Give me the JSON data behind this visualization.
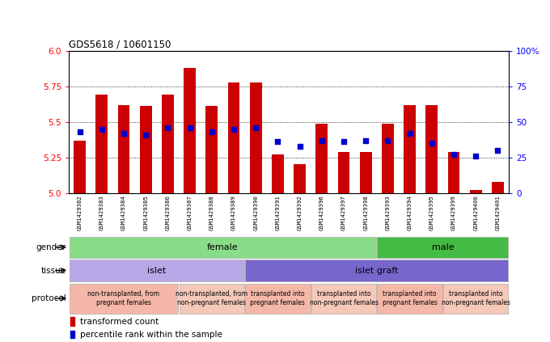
{
  "title": "GDS5618 / 10601150",
  "samples": [
    "GSM1429382",
    "GSM1429383",
    "GSM1429384",
    "GSM1429385",
    "GSM1429386",
    "GSM1429387",
    "GSM1429388",
    "GSM1429389",
    "GSM1429390",
    "GSM1429391",
    "GSM1429392",
    "GSM1429396",
    "GSM1429397",
    "GSM1429398",
    "GSM1429393",
    "GSM1429394",
    "GSM1429395",
    "GSM1429399",
    "GSM1429400",
    "GSM1429401"
  ],
  "bar_heights": [
    5.37,
    5.69,
    5.62,
    5.61,
    5.69,
    5.88,
    5.61,
    5.78,
    5.78,
    5.27,
    5.2,
    5.49,
    5.29,
    5.29,
    5.49,
    5.62,
    5.62,
    5.29,
    5.02,
    5.08
  ],
  "percentile_ranks": [
    43,
    45,
    42,
    41,
    46,
    46,
    43,
    45,
    46,
    36,
    33,
    37,
    36,
    37,
    37,
    42,
    35,
    27,
    26,
    30
  ],
  "ymin": 5.0,
  "ymax": 6.0,
  "y_ticks_left": [
    5.0,
    5.25,
    5.5,
    5.75,
    6.0
  ],
  "y_ticks_right": [
    0,
    25,
    50,
    75,
    100
  ],
  "bar_color": "#cc0000",
  "square_color": "#0000cc",
  "bg_color": "#ffffff",
  "chart_bg": "#ffffff",
  "xlabel_bg": "#d0d0d0",
  "gender_female_color": "#88dd88",
  "gender_male_color": "#44bb44",
  "tissue_islet_color": "#b8a8e8",
  "tissue_graft_color": "#7766cc",
  "proto_even_color": "#f5b8a8",
  "proto_odd_color": "#f5c8b8",
  "gender_groups": [
    {
      "label": "female",
      "start": 0,
      "end": 13
    },
    {
      "label": "male",
      "start": 14,
      "end": 19
    }
  ],
  "tissue_groups": [
    {
      "label": "islet",
      "start": 0,
      "end": 7
    },
    {
      "label": "islet graft",
      "start": 8,
      "end": 19
    }
  ],
  "protocol_groups": [
    {
      "label": "non-transplanted, from\npregnant females",
      "start": 0,
      "end": 4
    },
    {
      "label": "non-transplanted, from\nnon-pregnant females",
      "start": 5,
      "end": 7
    },
    {
      "label": "transplanted into\npregnant females",
      "start": 8,
      "end": 10
    },
    {
      "label": "transplanted into\nnon-pregnant females",
      "start": 11,
      "end": 13
    },
    {
      "label": "transplanted into\npregnant females",
      "start": 14,
      "end": 16
    },
    {
      "label": "transplanted into\nnon-pregnant females",
      "start": 17,
      "end": 19
    }
  ]
}
